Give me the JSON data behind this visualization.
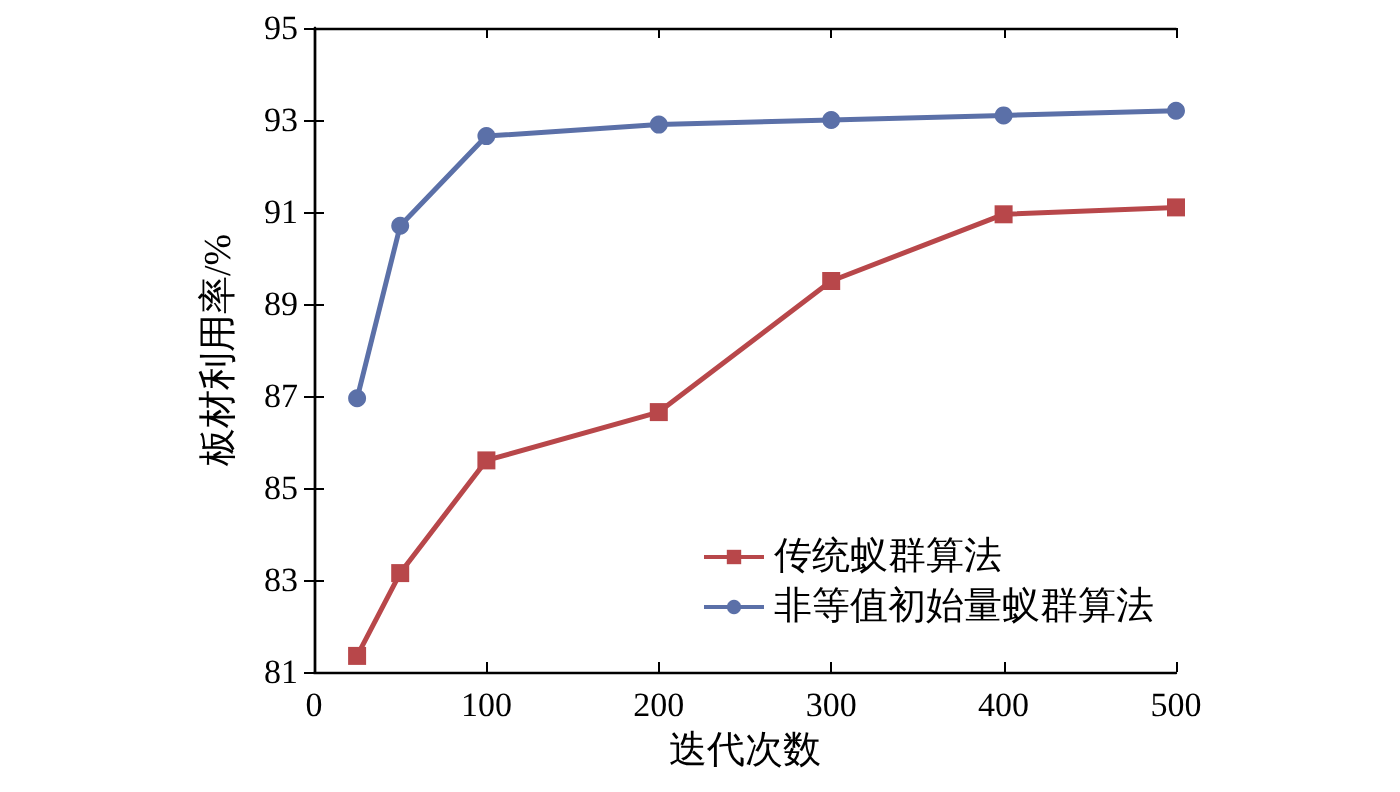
{
  "chart_data": {
    "type": "line",
    "xlabel": "迭代次数",
    "ylabel": "板材利用率/%",
    "x": [
      25,
      50,
      100,
      200,
      300,
      400,
      500
    ],
    "series": [
      {
        "name": "传统蚁群算法",
        "color": "#b8474a",
        "marker": "square",
        "values": [
          81.35,
          83.15,
          85.6,
          86.65,
          89.5,
          90.95,
          91.1
        ]
      },
      {
        "name": "非等值初始量蚁群算法",
        "color": "#5b70a8",
        "marker": "circle",
        "values": [
          86.95,
          90.7,
          92.65,
          92.9,
          93.0,
          93.1,
          93.2
        ]
      }
    ],
    "xlim": [
      0,
      500
    ],
    "xticks": [
      0,
      100,
      200,
      300,
      400,
      500
    ],
    "ylim": [
      81,
      95
    ],
    "yticks": [
      81,
      83,
      85,
      87,
      89,
      91,
      93,
      95
    ],
    "legend": "bottom right",
    "grid": false,
    "line_style": "solid"
  }
}
